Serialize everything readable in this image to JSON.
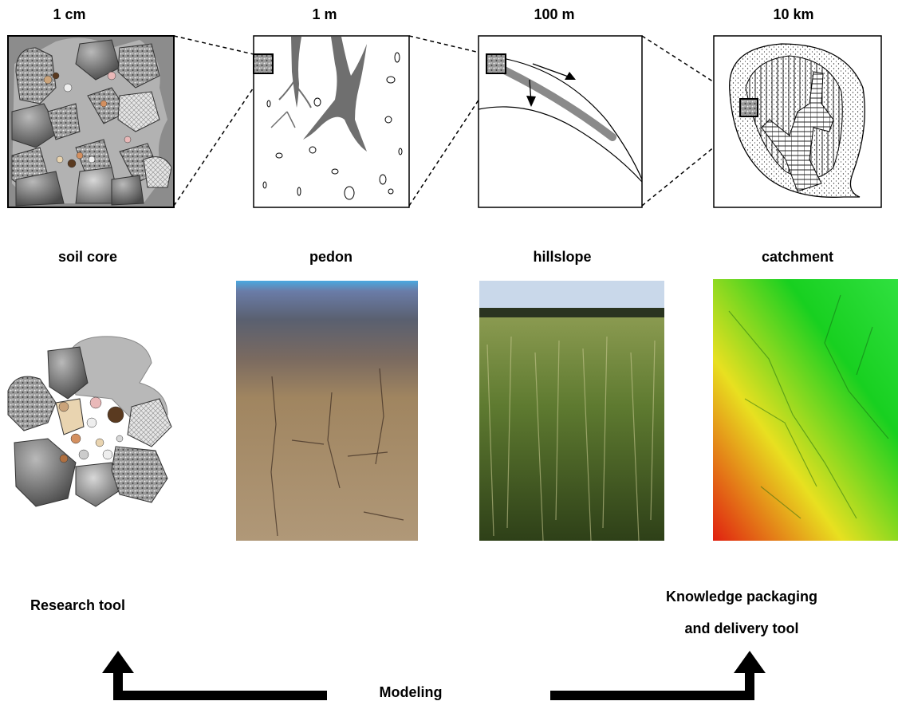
{
  "scales": [
    {
      "scale": "1 cm",
      "name": "soil core"
    },
    {
      "scale": "1 m",
      "name": "pedon"
    },
    {
      "scale": "100 m",
      "name": "hillslope"
    },
    {
      "scale": "10 km",
      "name": "catchment"
    }
  ],
  "tools": {
    "left": "Research tool",
    "right_line1": "Knowledge packaging",
    "right_line2": "and delivery tool"
  },
  "center_label": "Modeling",
  "colors": {
    "root": "#777777",
    "flow_band": "#888888",
    "dem_low": "#18d020",
    "dem_mid": "#e8e020",
    "dem_high": "#e02010",
    "soil_profile": "#a08560",
    "field_grass": "#5e7a30",
    "sky": "#c9d8ea"
  }
}
